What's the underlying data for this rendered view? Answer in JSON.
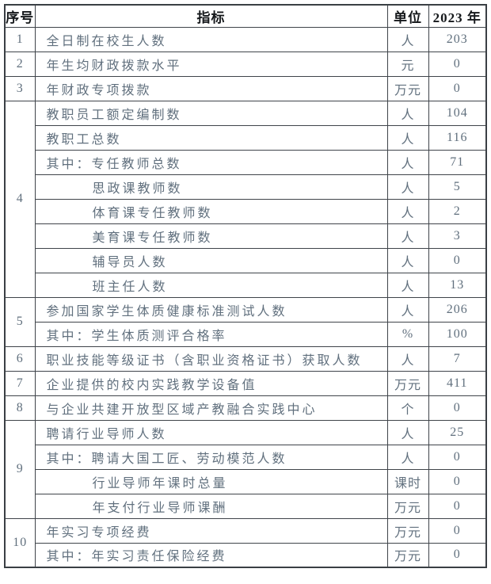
{
  "colors": {
    "background": "#ffffff",
    "border": "#3f444a",
    "header_text": "#15181b",
    "body_text": "#61707e"
  },
  "table": {
    "headers": {
      "no": "序号",
      "indicator": "指标",
      "unit": "单位",
      "year": "2023 年"
    },
    "rows": [
      {
        "no": "1",
        "indicator": "全日制在校生人数",
        "unit": "人",
        "value": "203"
      },
      {
        "no": "2",
        "indicator": "年生均财政拨款水平",
        "unit": "元",
        "value": "0"
      },
      {
        "no": "3",
        "indicator": "年财政专项拨款",
        "unit": "万元",
        "value": "0"
      },
      {
        "no": "4",
        "indicator": "教职员工额定编制数",
        "unit": "人",
        "value": "104"
      },
      {
        "indicator": "教职工总数",
        "unit": "人",
        "value": "116"
      },
      {
        "indicator": "其中：专任教师总数",
        "unit": "人",
        "value": "71"
      },
      {
        "indicator": "思政课教师数",
        "unit": "人",
        "value": "5",
        "indent": true
      },
      {
        "indicator": "体育课专任教师数",
        "unit": "人",
        "value": "2",
        "indent": true
      },
      {
        "indicator": "美育课专任教师数",
        "unit": "人",
        "value": "3",
        "indent": true
      },
      {
        "indicator": "辅导员人数",
        "unit": "人",
        "value": "0",
        "indent": true
      },
      {
        "indicator": "班主任人数",
        "unit": "人",
        "value": "13",
        "indent": true
      },
      {
        "no": "5",
        "indicator": "参加国家学生体质健康标准测试人数",
        "unit": "人",
        "value": "206"
      },
      {
        "indicator": "其中：学生体质测评合格率",
        "unit": "%",
        "value": "100"
      },
      {
        "no": "6",
        "indicator": "职业技能等级证书（含职业资格证书）获取人数",
        "unit": "人",
        "value": "7"
      },
      {
        "no": "7",
        "indicator": "企业提供的校内实践教学设备值",
        "unit": "万元",
        "value": "411"
      },
      {
        "no": "8",
        "indicator": "与企业共建开放型区域产教融合实践中心",
        "unit": "个",
        "value": "0"
      },
      {
        "no": "9",
        "indicator": "聘请行业导师人数",
        "unit": "人",
        "value": "25"
      },
      {
        "indicator": "其中：聘请大国工匠、劳动模范人数",
        "unit": "人",
        "value": "0"
      },
      {
        "indicator": "行业导师年课时总量",
        "unit": "课时",
        "value": "0",
        "indent": true
      },
      {
        "indicator": "年支付行业导师课酬",
        "unit": "万元",
        "value": "0",
        "indent": true
      },
      {
        "no": "10",
        "indicator": "年实习专项经费",
        "unit": "万元",
        "value": "0"
      },
      {
        "indicator": "其中：年实习责任保险经费",
        "unit": "万元",
        "value": "0"
      }
    ]
  }
}
